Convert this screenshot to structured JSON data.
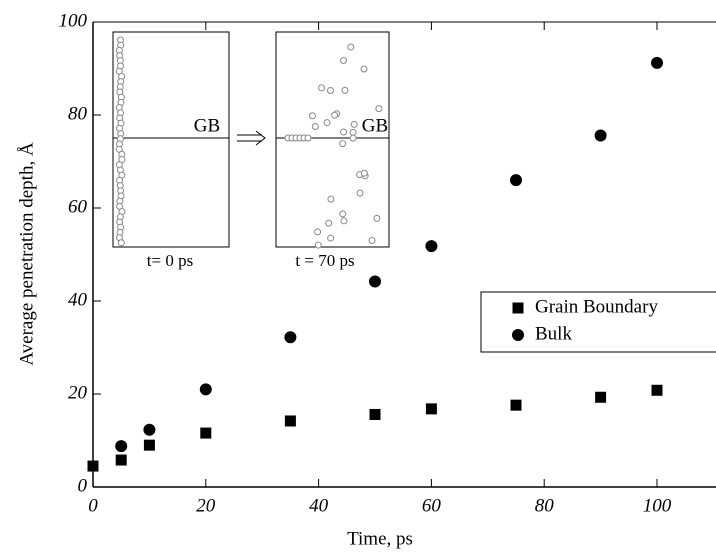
{
  "chart_data": {
    "type": "scatter",
    "x_label": "Time, ps",
    "y_label": "Average penetration depth, Å",
    "xlim": [
      0,
      110
    ],
    "xticks": [
      0,
      20,
      40,
      60,
      80,
      100
    ],
    "ylim": [
      0,
      100
    ],
    "yticks": [
      0,
      20,
      40,
      60,
      80,
      100
    ],
    "legend": "right",
    "series": [
      {
        "name": "Grain Boundary",
        "color": "#000000",
        "marker": "square",
        "x": [
          0,
          5,
          10,
          20,
          35,
          50,
          60,
          75,
          90,
          100
        ],
        "values": [
          4.5,
          5.8,
          9.0,
          11.6,
          14.2,
          15.6,
          16.8,
          17.6,
          19.3,
          20.8
        ]
      },
      {
        "name": "Bulk",
        "color": "#000000",
        "marker": "circle",
        "x": [
          5,
          10,
          20,
          35,
          50,
          60,
          75,
          90,
          100
        ],
        "values": [
          8.8,
          12.3,
          21.0,
          32.2,
          44.2,
          51.8,
          66.0,
          75.6,
          91.2
        ]
      }
    ],
    "annotations": [
      "GB",
      "t= 0 ps",
      "GB",
      "t = 70 ps"
    ]
  }
}
